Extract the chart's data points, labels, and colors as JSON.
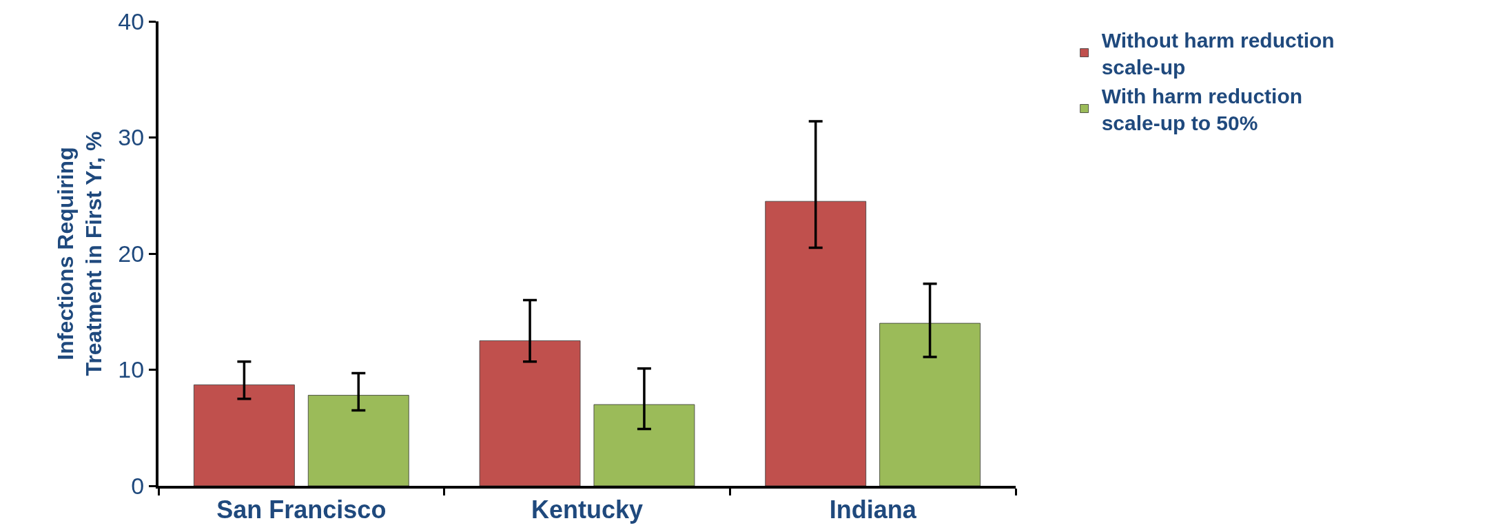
{
  "chart_data": {
    "type": "bar",
    "ylabel": "Infections Requiring Treatment in First Yr, %",
    "categories": [
      "San Francisco",
      "Kentucky",
      "Indiana"
    ],
    "series": [
      {
        "name": "Without harm reduction scale-up",
        "color": "#c0504d",
        "values": [
          8.7,
          12.5,
          24.5
        ],
        "errors": [
          [
            7.5,
            10.7
          ],
          [
            10.7,
            16.0
          ],
          [
            20.5,
            31.4
          ]
        ]
      },
      {
        "name": "With harm reduction scale-up to 50%",
        "color": "#9bbb59",
        "values": [
          7.8,
          7.0,
          14.0
        ],
        "errors": [
          [
            6.5,
            9.7
          ],
          [
            4.9,
            10.1
          ],
          [
            11.1,
            17.4
          ]
        ]
      }
    ],
    "ylim": [
      0,
      40
    ],
    "yticks": [
      0,
      10,
      20,
      30,
      40
    ],
    "legend": "top right"
  }
}
